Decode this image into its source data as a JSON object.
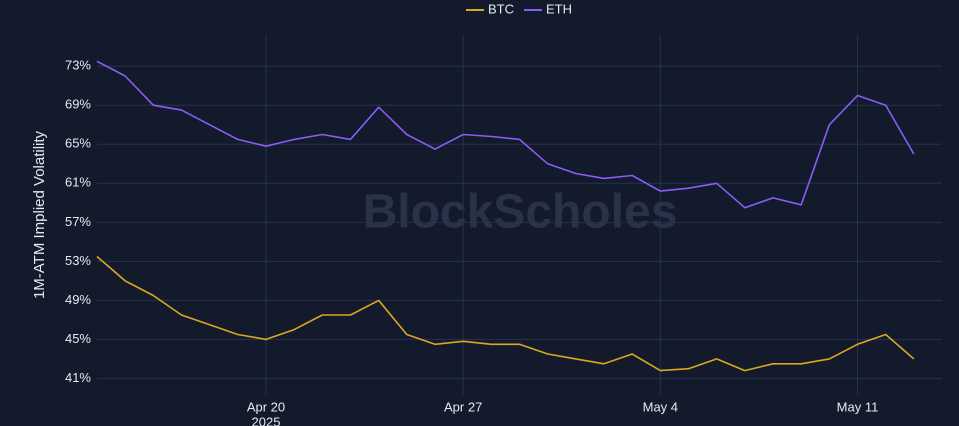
{
  "chart_data": {
    "type": "line",
    "y_label": "1M-ATM Implied Volatility",
    "watermark": "BlockScholes",
    "x": [
      "2025-04-14",
      "2025-04-15",
      "2025-04-16",
      "2025-04-17",
      "2025-04-18",
      "2025-04-19",
      "2025-04-20",
      "2025-04-21",
      "2025-04-22",
      "2025-04-23",
      "2025-04-24",
      "2025-04-25",
      "2025-04-26",
      "2025-04-27",
      "2025-04-28",
      "2025-04-29",
      "2025-04-30",
      "2025-05-01",
      "2025-05-02",
      "2025-05-03",
      "2025-05-04",
      "2025-05-05",
      "2025-05-06",
      "2025-05-07",
      "2025-05-08",
      "2025-05-09",
      "2025-05-10",
      "2025-05-11",
      "2025-05-12",
      "2025-05-13"
    ],
    "series": [
      {
        "name": "BTC",
        "color": "#d9a820",
        "values": [
          53.5,
          51,
          49.5,
          47.5,
          46.5,
          45.5,
          45,
          46,
          47.5,
          47.5,
          49,
          45.5,
          44.5,
          44.8,
          44.5,
          44.5,
          43.5,
          43,
          42.5,
          43.5,
          41.8,
          42,
          43,
          41.8,
          42.5,
          42.5,
          43,
          44.5,
          45.5,
          43
        ]
      },
      {
        "name": "ETH",
        "color": "#8b5cf6",
        "values": [
          73.5,
          72,
          69,
          68.5,
          67,
          65.5,
          64.8,
          65.5,
          66,
          65.5,
          68.8,
          66,
          64.5,
          66,
          65.8,
          65.5,
          63,
          62,
          61.5,
          61.8,
          60.2,
          60.5,
          61,
          58.5,
          59.5,
          58.8,
          67,
          70,
          69,
          64
        ]
      }
    ],
    "xlim": [
      "2025-04-14",
      "2025-05-14"
    ],
    "xticks": [
      {
        "value": "2025-04-20",
        "label": "Apr 20"
      },
      {
        "value": "2025-04-27",
        "label": "Apr 27"
      },
      {
        "value": "2025-05-04",
        "label": "May 4"
      },
      {
        "value": "2025-05-11",
        "label": "May 11"
      }
    ],
    "x_year": "2025",
    "ylim": [
      39.3,
      76.2
    ],
    "yticks": [
      {
        "value": 41,
        "label": "41%"
      },
      {
        "value": 45,
        "label": "45%"
      },
      {
        "value": 49,
        "label": "49%"
      },
      {
        "value": 53,
        "label": "53%"
      },
      {
        "value": 57,
        "label": "57%"
      },
      {
        "value": 61,
        "label": "61%"
      },
      {
        "value": 65,
        "label": "65%"
      },
      {
        "value": 69,
        "label": "69%"
      },
      {
        "value": 73,
        "label": "73%"
      }
    ],
    "grid": true,
    "legend": "top"
  }
}
